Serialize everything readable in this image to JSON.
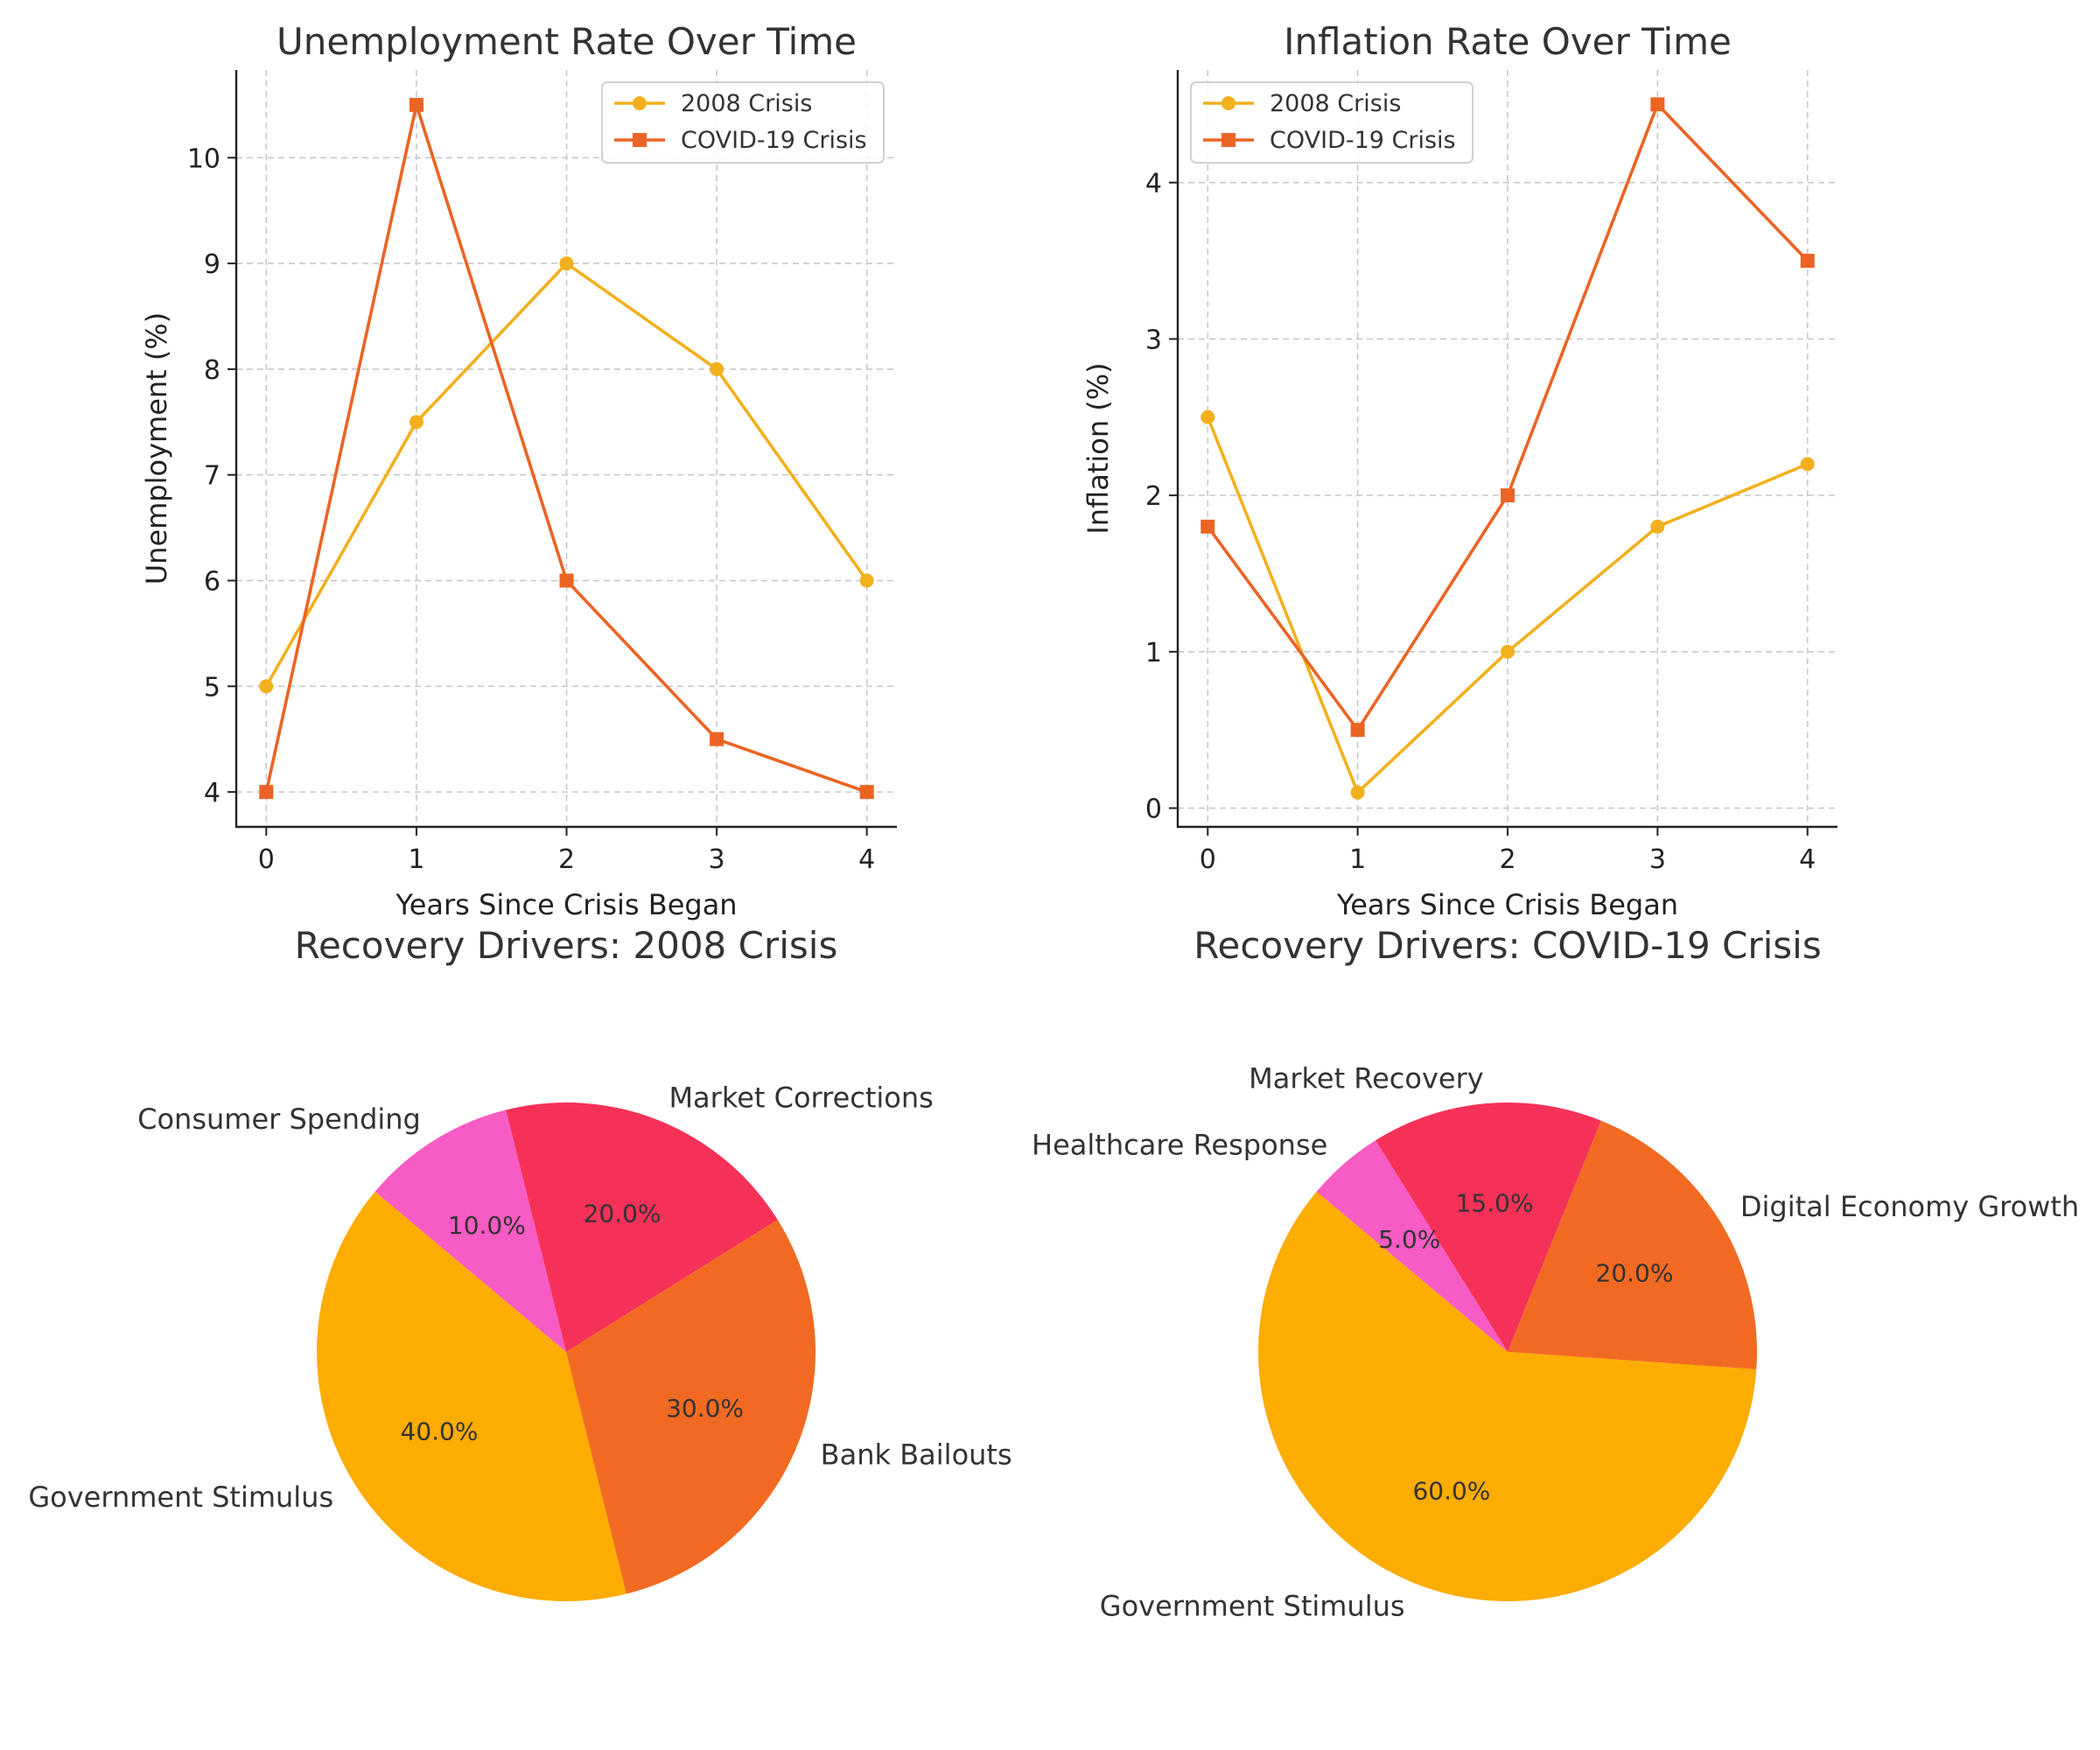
{
  "chart_data": [
    {
      "type": "line",
      "title": "Unemployment Rate Over Time",
      "xlabel": "Years Since Crisis Began",
      "ylabel": "Unemployment (%)",
      "x": [
        0,
        1,
        2,
        3,
        4
      ],
      "x_ticks": [
        "0",
        "1",
        "2",
        "3",
        "4"
      ],
      "y_ticks": [
        "4",
        "5",
        "6",
        "7",
        "8",
        "9",
        "10"
      ],
      "ylim": [
        3.67,
        10.83
      ],
      "xlim": [
        -0.2,
        4.2
      ],
      "grid": true,
      "legend_position": "top-right",
      "series": [
        {
          "name": "2008 Crisis",
          "values": [
            5,
            7.5,
            9,
            8,
            6
          ],
          "color": "#F2B01E",
          "marker": "circle"
        },
        {
          "name": "COVID-19 Crisis",
          "values": [
            4,
            10.5,
            6,
            4.5,
            4
          ],
          "color": "#EB6424",
          "marker": "square"
        }
      ]
    },
    {
      "type": "line",
      "title": "Inflation Rate Over Time",
      "xlabel": "Years Since Crisis Began",
      "ylabel": "Inflation (%)",
      "x": [
        0,
        1,
        2,
        3,
        4
      ],
      "x_ticks": [
        "0",
        "1",
        "2",
        "3",
        "4"
      ],
      "y_ticks": [
        "0",
        "1",
        "2",
        "3",
        "4"
      ],
      "ylim": [
        -0.12,
        4.72
      ],
      "xlim": [
        -0.2,
        4.2
      ],
      "grid": true,
      "legend_position": "top-left",
      "series": [
        {
          "name": "2008 Crisis",
          "values": [
            2.5,
            0.1,
            1,
            1.8,
            2.2
          ],
          "color": "#F2B01E",
          "marker": "circle"
        },
        {
          "name": "COVID-19 Crisis",
          "values": [
            1.8,
            0.5,
            2,
            4.5,
            3.5
          ],
          "color": "#EB6424",
          "marker": "square"
        }
      ]
    },
    {
      "type": "pie",
      "title": "Recovery Drivers: 2008 Crisis",
      "start_angle_deg": 140,
      "slices": [
        {
          "label": "Government Stimulus",
          "value": 40,
          "pct_label": "40.0%",
          "color": "#FDAC00"
        },
        {
          "label": "Bank Bailouts",
          "value": 30,
          "pct_label": "30.0%",
          "color": "#F26A22"
        },
        {
          "label": "Market Corrections",
          "value": 20,
          "pct_label": "20.0%",
          "color": "#F53158"
        },
        {
          "label": "Consumer Spending",
          "value": 10,
          "pct_label": "10.0%",
          "color": "#F75BC4"
        }
      ]
    },
    {
      "type": "pie",
      "title": "Recovery Drivers: COVID-19 Crisis",
      "start_angle_deg": 140,
      "slices": [
        {
          "label": "Government Stimulus",
          "value": 60,
          "pct_label": "60.0%",
          "color": "#FDAC00"
        },
        {
          "label": "Digital Economy Growth",
          "value": 20,
          "pct_label": "20.0%",
          "color": "#F26A22"
        },
        {
          "label": "Market Recovery",
          "value": 15,
          "pct_label": "15.0%",
          "color": "#F53158"
        },
        {
          "label": "Healthcare Response",
          "value": 5,
          "pct_label": "5.0%",
          "color": "#F75BC4"
        }
      ]
    }
  ]
}
